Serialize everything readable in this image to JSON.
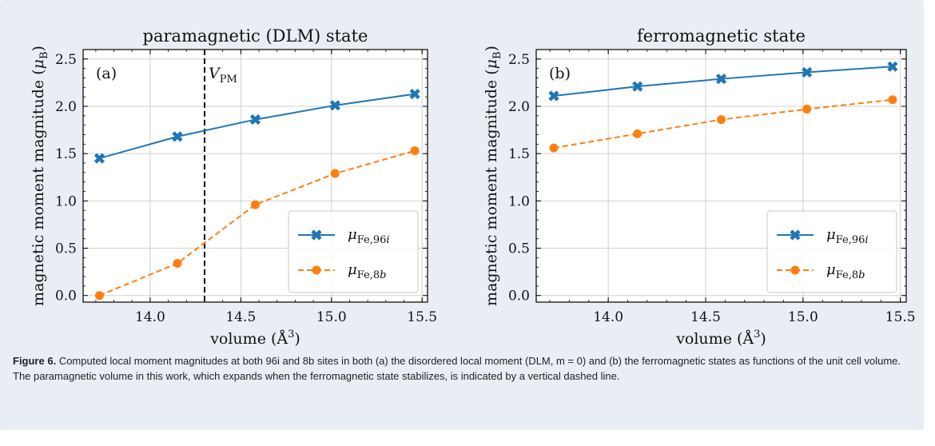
{
  "chart_data": [
    {
      "type": "line",
      "title": "paramagnetic (DLM) state",
      "panel_label": "(a)",
      "xlabel": "volume (Å³)",
      "ylabel": "magnetic moment magnitude (μB)",
      "xlim": [
        13.63,
        15.53
      ],
      "ylim": [
        -0.07,
        2.6
      ],
      "xticks": [
        "14.0",
        "14.5",
        "15.0",
        "15.5"
      ],
      "yticks": [
        "0.0",
        "0.5",
        "1.0",
        "1.5",
        "2.0",
        "2.5"
      ],
      "grid": true,
      "legend_position": "bottom-right",
      "x": [
        13.72,
        14.15,
        14.58,
        15.02,
        15.46
      ],
      "series": [
        {
          "name": "μFe,96i",
          "values": [
            1.45,
            1.68,
            1.86,
            2.01,
            2.13
          ],
          "color": "#1f77b4",
          "marker": "x",
          "linestyle": "solid"
        },
        {
          "name": "μFe,8b",
          "values": [
            0.0,
            0.34,
            0.96,
            1.29,
            1.53
          ],
          "color": "#ff7f0e",
          "marker": "o",
          "linestyle": "dashed"
        }
      ],
      "vline": {
        "x": 14.3,
        "label": "VPM",
        "color": "#000000",
        "linestyle": "dashed"
      }
    },
    {
      "type": "line",
      "title": "ferromagnetic state",
      "panel_label": "(b)",
      "xlabel": "volume (Å³)",
      "ylabel": "magnetic moment magnitude (μB)",
      "xlim": [
        13.63,
        15.53
      ],
      "ylim": [
        -0.07,
        2.6
      ],
      "xticks": [
        "14.0",
        "14.5",
        "15.0",
        "15.5"
      ],
      "yticks": [
        "0.0",
        "0.5",
        "1.0",
        "1.5",
        "2.0",
        "2.5"
      ],
      "grid": true,
      "legend_position": "bottom-right",
      "x": [
        13.72,
        14.15,
        14.58,
        15.02,
        15.46
      ],
      "series": [
        {
          "name": "μFe,96i",
          "values": [
            2.11,
            2.21,
            2.29,
            2.36,
            2.42
          ],
          "color": "#1f77b4",
          "marker": "x",
          "linestyle": "solid"
        },
        {
          "name": "μFe,8b",
          "values": [
            1.56,
            1.71,
            1.86,
            1.97,
            2.07
          ],
          "color": "#ff7f0e",
          "marker": "o",
          "linestyle": "dashed"
        }
      ]
    }
  ],
  "caption": {
    "label": "Figure 6.",
    "text": "Computed local moment magnitudes at both 96i and 8b sites in both (a) the disordered local moment (DLM, m = 0) and (b) the ferromagnetic states as functions of the unit cell volume. The paramagnetic volume in this work, which expands when the ferromagnetic state stabilizes, is indicated by a vertical dashed line."
  }
}
